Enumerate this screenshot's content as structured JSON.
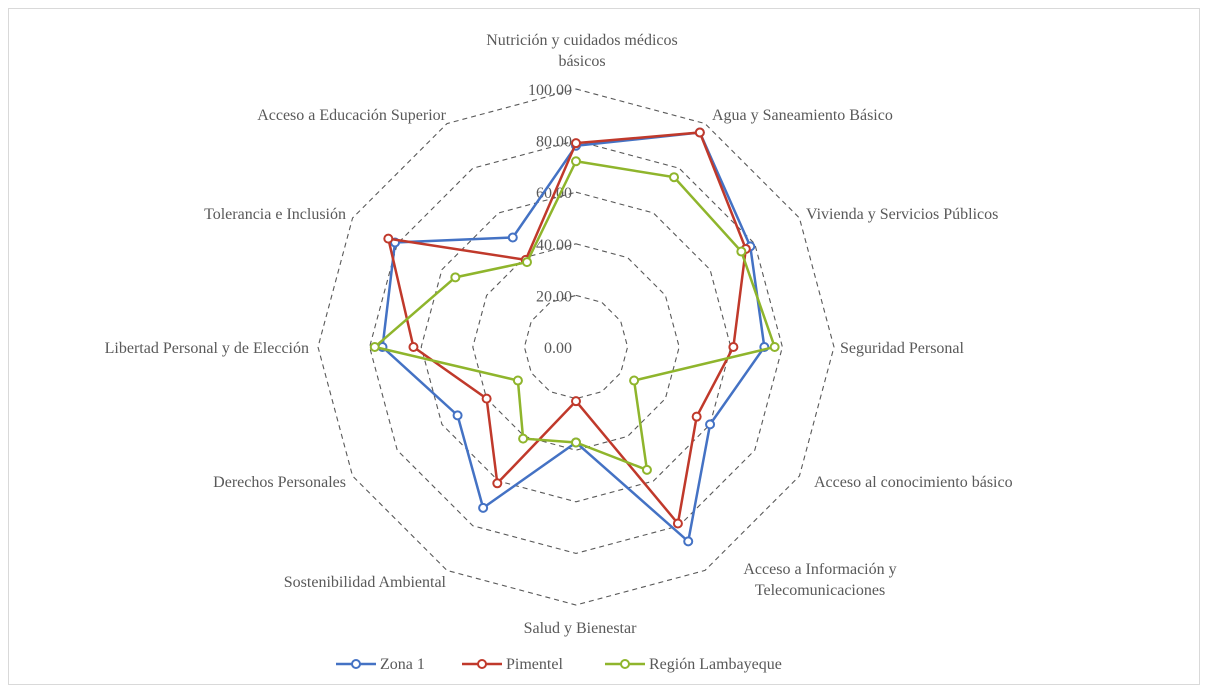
{
  "chart_data": {
    "type": "radar",
    "title": "",
    "axes": [
      [
        "Nutrición y cuidados médicos",
        "básicos"
      ],
      [
        "Agua y Saneamiento Básico"
      ],
      [
        "Vivienda y Servicios Públicos"
      ],
      [
        "Seguridad Personal"
      ],
      [
        "Acceso al conocimiento básico"
      ],
      [
        "Acceso a Información y",
        "Telecomunicaciones"
      ],
      [
        "Salud y Bienestar"
      ],
      [
        "Sostenibilidad Ambiental"
      ],
      [
        "Derechos Personales"
      ],
      [
        "Libertad Personal y de Elección"
      ],
      [
        "Tolerancia e Inclusión"
      ],
      [
        "Acceso a Educación Superior"
      ]
    ],
    "rmin": 0,
    "rmax": 100,
    "ticks": [
      "0.00",
      "20.00",
      "40.00",
      "60.00",
      "80.00",
      "100.00"
    ],
    "tick_values": [
      0,
      20,
      40,
      60,
      80,
      100
    ],
    "grid": true,
    "legend_position": "bottom",
    "series": [
      {
        "name": "Zona 1",
        "color": "#4472c4",
        "values": [
          78,
          96,
          78,
          73,
          60,
          87,
          37,
          72,
          53,
          75,
          81,
          49
        ]
      },
      {
        "name": "Pimentel",
        "color": "#c0392b",
        "values": [
          79,
          96,
          76,
          61,
          54,
          79,
          21,
          61,
          40,
          63,
          84,
          39
        ]
      },
      {
        "name": "Región Lambayeque",
        "color": "#8fb52c",
        "values": [
          72,
          76,
          74,
          77,
          26,
          55,
          37,
          41,
          26,
          78,
          54,
          38
        ]
      }
    ]
  }
}
